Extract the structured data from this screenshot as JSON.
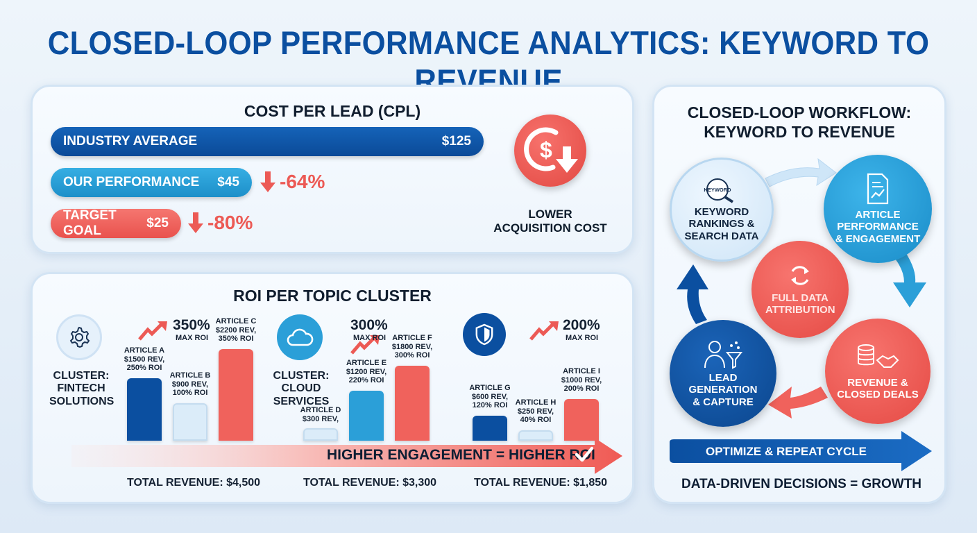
{
  "title": "CLOSED-LOOP PERFORMANCE ANALYTICS: KEYWORD TO REVENUE",
  "colors": {
    "dark_blue": "#0b4fa0",
    "mid_blue": "#2b9fd8",
    "coral": "#f0625c",
    "pale_blue": "#dbecf9"
  },
  "cpl": {
    "title": "COST PER LEAD (CPL)",
    "rows": [
      {
        "label": "INDUSTRY AVERAGE",
        "value": "$125",
        "delta": ""
      },
      {
        "label": "OUR PERFORMANCE",
        "value": "$45",
        "delta": "-64%"
      },
      {
        "label": "TARGET GOAL",
        "value": "$25",
        "delta": "-80%"
      }
    ],
    "icon": "dollar-down-icon",
    "icon_caption": "LOWER ACQUISITION COST"
  },
  "roi": {
    "title": "ROI PER TOPIC CLUSTER",
    "banner": "HIGHER ENGAGEMENT = HIGHER ROI",
    "clusters": [
      {
        "name": "CLUSTER: FINTECH SOLUTIONS",
        "icon": "gear-icon",
        "max_roi": "350%",
        "max_roi_label": "MAX ROI",
        "total": "TOTAL REVENUE: $4,500"
      },
      {
        "name": "CLUSTER: CLOUD SERVICES",
        "icon": "cloud-icon",
        "max_roi": "300%",
        "max_roi_label": "MAX ROI",
        "total": "TOTAL REVENUE: $3,300"
      },
      {
        "name": "",
        "icon": "shield-icon",
        "max_roi": "200%",
        "max_roi_label": "MAX ROI",
        "total": "TOTAL REVENUE: $1,850"
      }
    ]
  },
  "chart_data": {
    "type": "bar",
    "title": "ROI PER TOPIC CLUSTER",
    "categories": [
      "ARTICLE A",
      "ARTICLE B",
      "ARTICLE C",
      "ARTICLE D",
      "ARTICLE E",
      "ARTICLE F",
      "ARTICLE G",
      "ARTICLE H",
      "ARTICLE I"
    ],
    "revenue": [
      1500,
      900,
      2200,
      300,
      1200,
      1800,
      600,
      250,
      1000
    ],
    "roi_percent": [
      250,
      100,
      350,
      null,
      220,
      300,
      120,
      40,
      200
    ],
    "labels": [
      [
        "ARTICLE A",
        "$1500 REV,",
        "250% ROI"
      ],
      [
        "ARTICLE B",
        "$900 REV,",
        "100% ROI"
      ],
      [
        "ARTICLE C",
        "$2200 REV,",
        "350% ROI"
      ],
      [
        "ARTICLE D",
        "$300 REV,"
      ],
      [
        "ARTICLE E",
        "$1200 REV,",
        "220% ROI"
      ],
      [
        "ARTICLE F",
        "$1800 REV,",
        "300% ROI"
      ],
      [
        "ARTICLE G",
        "$600 REV,",
        "120% ROI"
      ],
      [
        "ARTICLE H",
        "$250 REV,",
        "40% ROI"
      ],
      [
        "ARTICLE I",
        "$1000 REV,",
        "200% ROI"
      ]
    ],
    "bar_colors": [
      "#0b4fa0",
      "#dbecf9",
      "#f0625c",
      "#dbecf9",
      "#2b9fd8",
      "#f0625c",
      "#0b4fa0",
      "#dbecf9",
      "#f0625c"
    ],
    "grid": false
  },
  "workflow": {
    "title_line1": "CLOSED-LOOP WORKFLOW:",
    "title_line2": "KEYWORD TO REVENUE",
    "nodes": [
      {
        "label": "KEYWORD RANKINGS & SEARCH DATA",
        "icon": "keyword-search-icon",
        "icon_text": "KEYWORD"
      },
      {
        "label": "ARTICLE PERFORMANCE & ENGAGEMENT",
        "icon": "document-chart-icon"
      },
      {
        "label": "FULL DATA ATTRIBUTION",
        "icon": "refresh-icon"
      },
      {
        "label": "LEAD GENERATION & CAPTURE",
        "icon": "person-funnel-icon"
      },
      {
        "label": "REVENUE & CLOSED DEALS",
        "icon": "coins-handshake-icon"
      }
    ],
    "repeat": "OPTIMIZE & REPEAT CYCLE",
    "footer": "DATA-DRIVEN DECISIONS = GROWTH"
  }
}
